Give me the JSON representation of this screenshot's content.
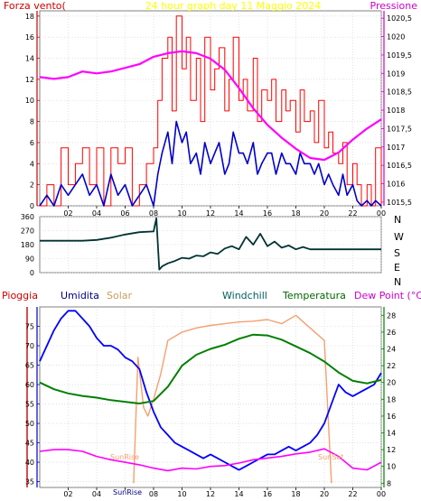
{
  "top_header": {
    "left": "Forza vento(",
    "center": "24 hour graph day   11 Maggio 2024",
    "right": "Pressione"
  },
  "compass": [
    "N",
    "W",
    "S",
    "E",
    "N"
  ],
  "bottom_legend": {
    "rain": "Pioggia",
    "humidity": "Umidita",
    "solar": "Solar",
    "windchill": "Windchill",
    "temperature": "Temperatura",
    "dewpoint": "Dew Point (°C)"
  },
  "sun_labels": {
    "sunrise": "SunRise",
    "sunset": "SunSet",
    "axis_sunrise": "SunRise"
  },
  "colors": {
    "wind_gust": "#ff0000",
    "wind_avg": "#0000cc",
    "pressure": "#ff00ff",
    "direction": "#003333",
    "humidity": "#0000ff",
    "solar": "#f4a070",
    "temperature": "#008000",
    "dewpoint": "#ff00ff",
    "rain": "#cc0000",
    "header_left": "#cc0000",
    "header_center": "#ffff00",
    "header_right": "#cc00cc"
  },
  "chart_data": [
    {
      "type": "line",
      "name": "wind",
      "x_ticks": [
        "02",
        "04",
        "06",
        "08",
        "10",
        "12",
        "14",
        "16",
        "18",
        "20",
        "22",
        "00"
      ],
      "y_ticks_left": [
        0,
        2,
        4,
        6,
        8,
        10,
        12,
        14,
        16,
        18
      ],
      "y_ticks_right": [
        "1015,5",
        "1016",
        "1016,5",
        "1017",
        "1017,5",
        "1018",
        "1018,5",
        "1019",
        "1019,5",
        "1020",
        "1020,5"
      ],
      "xlim": [
        0,
        24
      ],
      "ylim_left": [
        0,
        18.5
      ],
      "ylim_right": [
        1015.4,
        1020.7
      ],
      "series": [
        {
          "key": "gust",
          "x": [
            0,
            0.5,
            1,
            1.5,
            2,
            2.5,
            3,
            3.5,
            4,
            4.5,
            5,
            5.5,
            6,
            6.5,
            7,
            7.5,
            8,
            8.3,
            8.6,
            9,
            9.3,
            9.6,
            10,
            10.3,
            10.6,
            11,
            11.3,
            11.6,
            12,
            12.3,
            12.6,
            13,
            13.3,
            13.6,
            14,
            14.3,
            14.6,
            15,
            15.3,
            15.6,
            16,
            16.3,
            16.6,
            17,
            17.3,
            17.6,
            18,
            18.3,
            18.6,
            19,
            19.3,
            19.6,
            20,
            20.3,
            20.6,
            21,
            21.3,
            21.6,
            22,
            22.3,
            22.6,
            23,
            23.3,
            23.6,
            24
          ],
          "values": [
            0,
            2,
            0,
            5.5,
            2,
            4,
            5.5,
            2,
            5.5,
            0,
            5.5,
            4,
            5.5,
            0,
            2,
            4,
            5.5,
            10,
            14,
            16,
            9,
            18,
            13,
            16,
            10,
            14,
            8,
            16,
            11,
            13,
            15,
            9,
            12,
            16,
            10,
            12,
            9,
            14,
            8,
            11,
            10,
            12,
            8,
            11,
            9,
            10,
            7,
            11,
            8,
            9,
            6,
            10,
            5.5,
            7,
            5,
            4,
            6,
            2,
            4,
            2,
            0,
            2,
            0,
            5.5,
            0
          ]
        },
        {
          "key": "average",
          "x": [
            0,
            0.5,
            1,
            1.5,
            2,
            2.5,
            3,
            3.5,
            4,
            4.5,
            5,
            5.5,
            6,
            6.5,
            7,
            7.5,
            8,
            8.3,
            8.6,
            9,
            9.3,
            9.6,
            10,
            10.3,
            10.6,
            11,
            11.3,
            11.6,
            12,
            12.3,
            12.6,
            13,
            13.3,
            13.6,
            14,
            14.3,
            14.6,
            15,
            15.3,
            15.6,
            16,
            16.3,
            16.6,
            17,
            17.3,
            17.6,
            18,
            18.3,
            18.6,
            19,
            19.3,
            19.6,
            20,
            20.3,
            20.6,
            21,
            21.3,
            21.6,
            22,
            22.3,
            22.6,
            23,
            23.3,
            23.6,
            24
          ],
          "values": [
            0,
            1,
            0,
            2,
            1,
            2,
            3,
            1,
            2,
            0,
            3,
            1,
            2,
            0,
            1,
            2,
            0,
            3,
            5,
            7,
            4,
            8,
            6,
            7,
            4,
            5,
            3,
            6,
            4,
            5,
            6,
            3,
            4,
            7,
            5,
            5,
            4,
            6,
            3,
            4,
            5,
            5,
            3,
            5,
            4,
            4,
            3,
            5,
            4,
            4,
            3,
            4,
            2,
            3,
            2,
            1,
            3,
            1,
            2,
            0.5,
            0,
            0.5,
            0,
            0.5,
            0
          ]
        },
        {
          "key": "pressure",
          "axis": "right",
          "x": [
            0,
            1,
            2,
            3,
            4,
            5,
            6,
            7,
            8,
            9,
            10,
            11,
            12,
            13,
            14,
            15,
            16,
            17,
            18,
            19,
            20,
            21,
            22,
            23,
            24
          ],
          "values": [
            1018.9,
            1018.85,
            1018.9,
            1019.05,
            1019.0,
            1019.05,
            1019.15,
            1019.25,
            1019.45,
            1019.55,
            1019.6,
            1019.55,
            1019.4,
            1019.1,
            1018.6,
            1018.05,
            1017.6,
            1017.25,
            1016.95,
            1016.7,
            1016.65,
            1016.85,
            1017.2,
            1017.5,
            1017.75
          ]
        }
      ]
    },
    {
      "type": "line",
      "name": "wind direction",
      "y_ticks": [
        0,
        90,
        180,
        270,
        360
      ],
      "ylim": [
        0,
        360
      ],
      "xlim": [
        0,
        24
      ],
      "series": [
        {
          "key": "direction",
          "x": [
            0,
            1,
            2,
            3,
            4,
            5,
            6,
            7,
            8,
            8.2,
            8.4,
            8.6,
            9,
            9.5,
            10,
            10.5,
            11,
            11.5,
            12,
            12.5,
            13,
            13.5,
            14,
            14.5,
            15,
            15.5,
            16,
            16.5,
            17,
            17.5,
            18,
            18.5,
            19,
            20,
            21,
            22,
            23,
            24
          ],
          "values": [
            205,
            205,
            205,
            205,
            210,
            225,
            245,
            260,
            265,
            350,
            20,
            40,
            60,
            75,
            95,
            90,
            110,
            105,
            130,
            120,
            155,
            170,
            150,
            230,
            180,
            250,
            170,
            200,
            160,
            175,
            150,
            165,
            150,
            150,
            150,
            150,
            150,
            150
          ]
        }
      ]
    },
    {
      "type": "line",
      "name": "humidity temperature",
      "x_ticks": [
        "02",
        "04",
        "06",
        "08",
        "10",
        "12",
        "14",
        "16",
        "18",
        "20",
        "22",
        "00"
      ],
      "y_ticks_left": [
        35,
        40,
        45,
        50,
        55,
        60,
        65,
        70,
        75
      ],
      "y_ticks_right": [
        8,
        10,
        12,
        14,
        16,
        18,
        20,
        22,
        24,
        26,
        28
      ],
      "xlim": [
        0,
        24
      ],
      "ylim_left": [
        33.5,
        80
      ],
      "ylim_right": [
        7.5,
        29
      ],
      "series": [
        {
          "key": "humidity",
          "x": [
            0,
            0.5,
            1,
            1.5,
            2,
            2.5,
            3,
            3.5,
            4,
            4.5,
            5,
            5.5,
            6,
            6.5,
            7,
            7.5,
            8,
            8.5,
            9,
            9.5,
            10,
            10.5,
            11,
            11.5,
            12,
            12.5,
            13,
            13.5,
            14,
            14.5,
            15,
            15.5,
            16,
            16.5,
            17,
            17.5,
            18,
            18.5,
            19,
            19.5,
            20,
            20.5,
            21,
            21.5,
            22,
            22.5,
            23,
            23.5,
            24
          ],
          "values": [
            66,
            70,
            74,
            77,
            79,
            79,
            77,
            75,
            72,
            70,
            70,
            69,
            67,
            66,
            64,
            58,
            53,
            49,
            47,
            45,
            44,
            43,
            42,
            41,
            42,
            41,
            40,
            39,
            38,
            39,
            40,
            41,
            42,
            42,
            43,
            44,
            43,
            44,
            45,
            47,
            50,
            55,
            60,
            58,
            57,
            58,
            59,
            60,
            63
          ]
        },
        {
          "key": "temperature",
          "axis": "right",
          "x": [
            0,
            1,
            2,
            3,
            4,
            5,
            6,
            7,
            8,
            9,
            10,
            11,
            12,
            13,
            14,
            15,
            16,
            17,
            18,
            19,
            20,
            21,
            22,
            23,
            24
          ],
          "values": [
            20,
            19.2,
            18.7,
            18.4,
            18.2,
            17.9,
            17.7,
            17.5,
            17.8,
            19.5,
            22,
            23.3,
            24,
            24.5,
            25.2,
            25.7,
            25.6,
            25.1,
            24.3,
            23.5,
            22.5,
            21.2,
            20.2,
            19.9,
            20.3
          ]
        },
        {
          "key": "solar",
          "axis": "right",
          "x": [
            6.6,
            6.9,
            7.3,
            7.6,
            8,
            8.5,
            9,
            9.5,
            10,
            11,
            12,
            13,
            14,
            15,
            16,
            17,
            18,
            19,
            20,
            20.5
          ],
          "values": [
            8,
            23,
            17,
            16,
            18,
            21,
            25,
            25.5,
            26,
            26.5,
            26.8,
            27,
            27.2,
            27.3,
            27.5,
            27,
            28,
            26.5,
            25,
            8
          ]
        },
        {
          "key": "dewpoint",
          "axis": "right",
          "x": [
            0,
            1,
            2,
            3,
            4,
            5,
            6,
            7,
            8,
            9,
            10,
            11,
            12,
            13,
            14,
            15,
            16,
            17,
            18,
            19,
            20,
            21,
            22,
            23,
            24
          ],
          "values": [
            11.8,
            12,
            12,
            11.8,
            11.2,
            10.8,
            10.5,
            10.2,
            9.8,
            9.5,
            9.8,
            9.7,
            10,
            10.1,
            10.4,
            10.8,
            11,
            11.2,
            11.5,
            11.7,
            12.1,
            11.2,
            9.8,
            9.6,
            10.5
          ]
        }
      ]
    }
  ]
}
